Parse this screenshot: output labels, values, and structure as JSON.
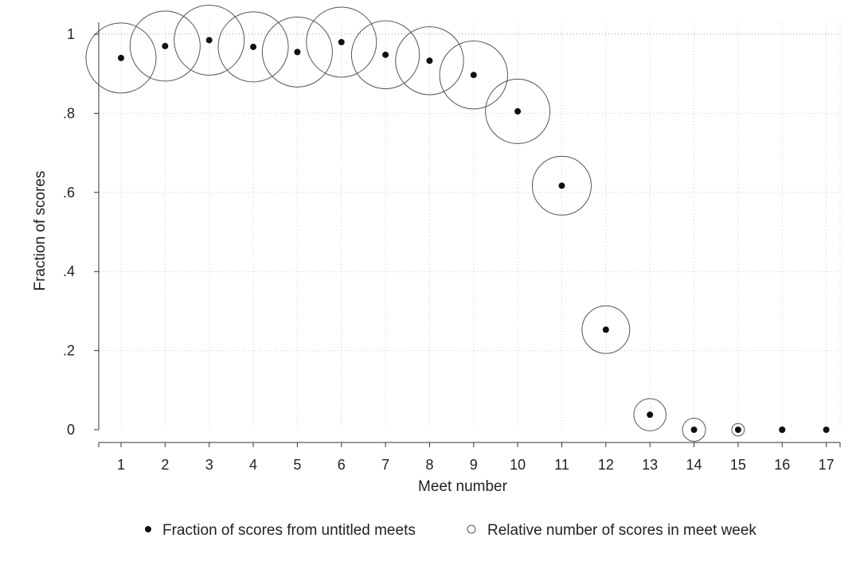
{
  "chart_data": {
    "type": "scatter",
    "title": "",
    "xlabel": "Meet number",
    "ylabel": "Fraction of scores",
    "xlim": [
      0.5,
      17.5
    ],
    "ylim": [
      0,
      1
    ],
    "x_ticks": [
      1,
      2,
      3,
      4,
      5,
      6,
      7,
      8,
      9,
      10,
      11,
      12,
      13,
      14,
      15,
      16,
      17
    ],
    "y_ticks": [
      0,
      0.2,
      0.4,
      0.6,
      0.8,
      1
    ],
    "y_tick_labels": [
      "0",
      ".2",
      ".4",
      ".6",
      ".8",
      "1"
    ],
    "grid": true,
    "legend_position": "bottom",
    "colors": {
      "marker": "#111111",
      "circle": "#555555",
      "grid": "#cccccc"
    },
    "series": [
      {
        "name": "Fraction of scores from untitled meets",
        "marker": "filled-dot",
        "x": [
          1,
          2,
          3,
          4,
          5,
          6,
          7,
          8,
          9,
          10,
          11,
          12,
          13,
          14,
          15,
          16,
          17
        ],
        "y": [
          0.94,
          0.97,
          0.985,
          0.968,
          0.955,
          0.98,
          0.948,
          0.933,
          0.897,
          0.805,
          0.617,
          0.253,
          0.038,
          0,
          0,
          0,
          0
        ]
      },
      {
        "name": "Relative number of scores in meet week",
        "marker": "hollow-circle",
        "x": [
          1,
          2,
          3,
          4,
          5,
          6,
          7,
          8,
          9,
          10,
          11,
          12,
          13,
          14,
          15,
          16,
          17
        ],
        "y": [
          0.94,
          0.97,
          0.985,
          0.968,
          0.955,
          0.98,
          0.948,
          0.933,
          0.897,
          0.805,
          0.617,
          0.253,
          0.038,
          0,
          0,
          0,
          0
        ],
        "relative_size": [
          1.0,
          1.0,
          1.0,
          1.0,
          1.0,
          1.0,
          0.97,
          0.97,
          0.97,
          0.92,
          0.84,
          0.68,
          0.46,
          0.33,
          0.18,
          0.08,
          0.0
        ]
      }
    ]
  }
}
